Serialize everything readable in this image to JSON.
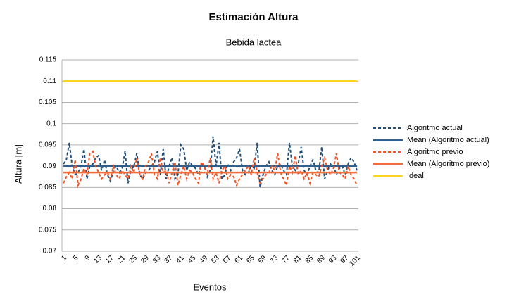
{
  "chart_data": {
    "type": "line",
    "title": "Estimación Altura",
    "subtitle": "Bebida lactea",
    "x_label": "Eventos",
    "y_label": "Altura [m]",
    "categories": [
      1,
      null,
      null,
      null,
      5,
      null,
      null,
      null,
      9,
      null,
      null,
      null,
      13,
      null,
      null,
      null,
      17,
      null,
      null,
      null,
      21,
      null,
      null,
      null,
      25,
      null,
      null,
      null,
      29,
      null,
      null,
      null,
      33,
      null,
      null,
      null,
      37,
      null,
      null,
      null,
      41,
      null,
      null,
      null,
      45,
      null,
      null,
      null,
      49,
      null,
      null,
      null,
      53,
      null,
      null,
      null,
      57,
      null,
      null,
      null,
      61,
      null,
      null,
      null,
      65,
      null,
      null,
      null,
      69,
      null,
      null,
      null,
      73,
      null,
      null,
      null,
      77,
      null,
      null,
      null,
      81,
      null,
      null,
      null,
      85,
      null,
      null,
      null,
      89,
      null,
      null,
      null,
      93,
      null,
      null,
      null,
      97,
      null,
      null,
      null,
      101
    ],
    "ylim": [
      0.07,
      0.115
    ],
    "yticks": [
      0.07,
      0.075,
      0.08,
      0.085,
      0.09,
      0.095,
      0.1,
      0.105,
      0.11,
      0.115
    ],
    "grid": true,
    "legend": "right",
    "series": [
      {
        "name": "Algoritmo actual",
        "color": "#1f4e79",
        "dashed": true,
        "values": [
          0.0905,
          0.0915,
          0.0955,
          0.09,
          0.088,
          0.0885,
          0.09,
          0.094,
          0.087,
          0.09,
          0.0905,
          0.092,
          0.0925,
          0.089,
          0.0915,
          0.088,
          0.0865,
          0.089,
          0.09,
          0.0885,
          0.0895,
          0.0935,
          0.086,
          0.089,
          0.09,
          0.093,
          0.088,
          0.087,
          0.0885,
          0.089,
          0.09,
          0.091,
          0.0935,
          0.088,
          0.094,
          0.087,
          0.09,
          0.092,
          0.087,
          0.088,
          0.095,
          0.094,
          0.089,
          0.091,
          0.09,
          0.0895,
          0.088,
          0.0905,
          0.09,
          0.0875,
          0.089,
          0.097,
          0.09,
          0.0955,
          0.087,
          0.088,
          0.0905,
          0.089,
          0.091,
          0.092,
          0.094,
          0.089,
          0.088,
          0.0885,
          0.09,
          0.0895,
          0.0955,
          0.085,
          0.088,
          0.09,
          0.091,
          0.089,
          0.088,
          0.09,
          0.0905,
          0.089,
          0.088,
          0.0955,
          0.09,
          0.089,
          0.0905,
          0.0945,
          0.089,
          0.088,
          0.09,
          0.0915,
          0.089,
          0.0885,
          0.0945,
          0.087,
          0.089,
          0.0905,
          0.09,
          0.088,
          0.0895,
          0.09,
          0.088,
          0.0905,
          0.092,
          0.091,
          0.089
        ]
      },
      {
        "name": "Mean (Algoritmo actual)",
        "color": "#2e5f8f",
        "dashed": false,
        "values": [
          0.09,
          0.09,
          0.09,
          0.09,
          0.09,
          0.09,
          0.09,
          0.09,
          0.09,
          0.09,
          0.09,
          0.09,
          0.09,
          0.09,
          0.09,
          0.09,
          0.09,
          0.09,
          0.09,
          0.09,
          0.09,
          0.09,
          0.09,
          0.09,
          0.09,
          0.09,
          0.09,
          0.09,
          0.09,
          0.09,
          0.09,
          0.09,
          0.09,
          0.09,
          0.09,
          0.09,
          0.09,
          0.09,
          0.09,
          0.09,
          0.09,
          0.09,
          0.09,
          0.09,
          0.09,
          0.09,
          0.09,
          0.09,
          0.09,
          0.09,
          0.09,
          0.09,
          0.09,
          0.09,
          0.09,
          0.09,
          0.09,
          0.09,
          0.09,
          0.09,
          0.09,
          0.09,
          0.09,
          0.09,
          0.09,
          0.09,
          0.09,
          0.09,
          0.09,
          0.09,
          0.09,
          0.09,
          0.09,
          0.09,
          0.09,
          0.09,
          0.09,
          0.09,
          0.09,
          0.09,
          0.09,
          0.09,
          0.09,
          0.09,
          0.09,
          0.09,
          0.09,
          0.09,
          0.09,
          0.09,
          0.09,
          0.09,
          0.09,
          0.09,
          0.09,
          0.09,
          0.09,
          0.09,
          0.09,
          0.09,
          0.09
        ]
      },
      {
        "name": "Algoritmo previo",
        "color": "#f4511e",
        "dashed": true,
        "values": [
          0.086,
          0.0875,
          0.0885,
          0.087,
          0.0915,
          0.0855,
          0.087,
          0.0895,
          0.088,
          0.093,
          0.0935,
          0.09,
          0.0885,
          0.087,
          0.088,
          0.0885,
          0.087,
          0.09,
          0.088,
          0.087,
          0.089,
          0.088,
          0.087,
          0.09,
          0.0885,
          0.092,
          0.088,
          0.087,
          0.09,
          0.091,
          0.093,
          0.088,
          0.087,
          0.092,
          0.0885,
          0.089,
          0.086,
          0.0885,
          0.091,
          0.0855,
          0.088,
          0.09,
          0.087,
          0.089,
          0.0885,
          0.087,
          0.086,
          0.091,
          0.09,
          0.088,
          0.092,
          0.087,
          0.0885,
          0.086,
          0.089,
          0.09,
          0.087,
          0.088,
          0.0875,
          0.0855,
          0.087,
          0.088,
          0.089,
          0.09,
          0.088,
          0.092,
          0.0885,
          0.086,
          0.087,
          0.088,
          0.0885,
          0.09,
          0.089,
          0.093,
          0.0885,
          0.087,
          0.0855,
          0.09,
          0.0885,
          0.0925,
          0.088,
          0.089,
          0.087,
          0.0885,
          0.086,
          0.0885,
          0.088,
          0.0875,
          0.09,
          0.092,
          0.089,
          0.088,
          0.0895,
          0.093,
          0.0885,
          0.088,
          0.087,
          0.09,
          0.088,
          0.087,
          0.0855
        ]
      },
      {
        "name": "Mean (Algoritmo previo)",
        "color": "#f26b3a",
        "dashed": false,
        "values": [
          0.0885,
          0.0885,
          0.0885,
          0.0885,
          0.0885,
          0.0885,
          0.0885,
          0.0885,
          0.0885,
          0.0885,
          0.0885,
          0.0885,
          0.0885,
          0.0885,
          0.0885,
          0.0885,
          0.0885,
          0.0885,
          0.0885,
          0.0885,
          0.0885,
          0.0885,
          0.0885,
          0.0885,
          0.0885,
          0.0885,
          0.0885,
          0.0885,
          0.0885,
          0.0885,
          0.0885,
          0.0885,
          0.0885,
          0.0885,
          0.0885,
          0.0885,
          0.0885,
          0.0885,
          0.0885,
          0.0885,
          0.0885,
          0.0885,
          0.0885,
          0.0885,
          0.0885,
          0.0885,
          0.0885,
          0.0885,
          0.0885,
          0.0885,
          0.0885,
          0.0885,
          0.0885,
          0.0885,
          0.0885,
          0.0885,
          0.0885,
          0.0885,
          0.0885,
          0.0885,
          0.0885,
          0.0885,
          0.0885,
          0.0885,
          0.0885,
          0.0885,
          0.0885,
          0.0885,
          0.0885,
          0.0885,
          0.0885,
          0.0885,
          0.0885,
          0.0885,
          0.0885,
          0.0885,
          0.0885,
          0.0885,
          0.0885,
          0.0885,
          0.0885,
          0.0885,
          0.0885,
          0.0885,
          0.0885,
          0.0885,
          0.0885,
          0.0885,
          0.0885,
          0.0885,
          0.0885,
          0.0885,
          0.0885,
          0.0885,
          0.0885,
          0.0885,
          0.0885,
          0.0885,
          0.0885,
          0.0885,
          0.0885
        ]
      },
      {
        "name": "Ideal",
        "color": "#ffd320",
        "dashed": false,
        "values": [
          0.11,
          0.11,
          0.11,
          0.11,
          0.11,
          0.11,
          0.11,
          0.11,
          0.11,
          0.11,
          0.11,
          0.11,
          0.11,
          0.11,
          0.11,
          0.11,
          0.11,
          0.11,
          0.11,
          0.11,
          0.11,
          0.11,
          0.11,
          0.11,
          0.11,
          0.11,
          0.11,
          0.11,
          0.11,
          0.11,
          0.11,
          0.11,
          0.11,
          0.11,
          0.11,
          0.11,
          0.11,
          0.11,
          0.11,
          0.11,
          0.11,
          0.11,
          0.11,
          0.11,
          0.11,
          0.11,
          0.11,
          0.11,
          0.11,
          0.11,
          0.11,
          0.11,
          0.11,
          0.11,
          0.11,
          0.11,
          0.11,
          0.11,
          0.11,
          0.11,
          0.11,
          0.11,
          0.11,
          0.11,
          0.11,
          0.11,
          0.11,
          0.11,
          0.11,
          0.11,
          0.11,
          0.11,
          0.11,
          0.11,
          0.11,
          0.11,
          0.11,
          0.11,
          0.11,
          0.11,
          0.11,
          0.11,
          0.11,
          0.11,
          0.11,
          0.11,
          0.11,
          0.11,
          0.11,
          0.11,
          0.11,
          0.11,
          0.11,
          0.11,
          0.11,
          0.11,
          0.11,
          0.11,
          0.11,
          0.11,
          0.11
        ]
      }
    ]
  }
}
